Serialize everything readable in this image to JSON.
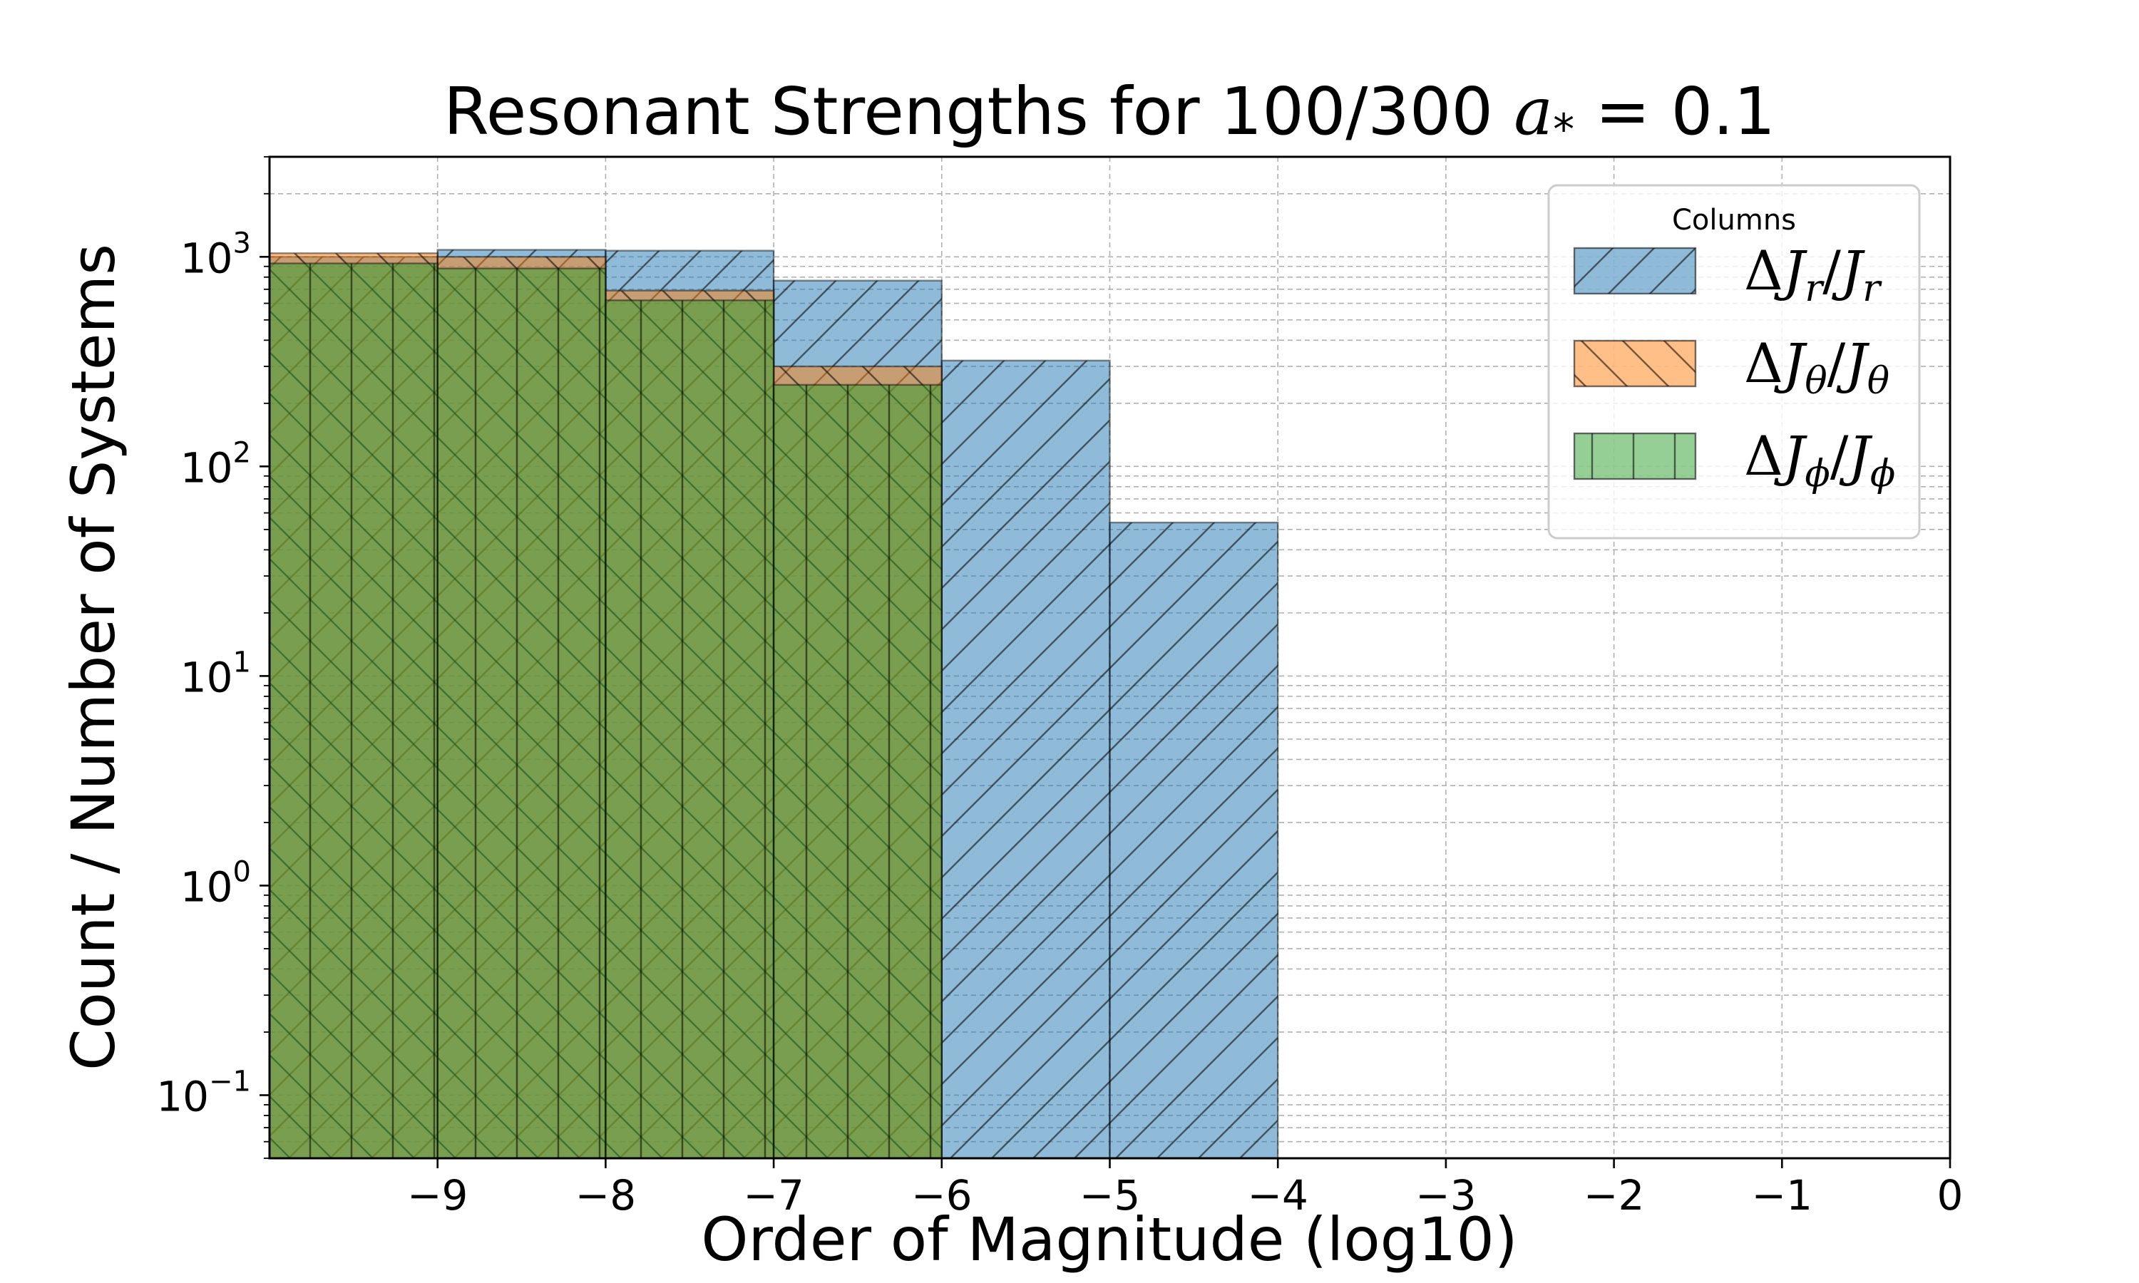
{
  "chart_data": {
    "type": "bar",
    "title": "Resonant Strengths for 100/300 a* = 0.1",
    "title_parts": {
      "prefix": "Resonant Strengths for 100/300 ",
      "var": "a",
      "sub": "*",
      "suffix": " = 0.1"
    },
    "xlabel": "Order of Magnitude (log10)",
    "ylabel": "Count / Number of Systems",
    "y_scale": "log",
    "xlim": [
      -10,
      0
    ],
    "ylim": [
      0.05,
      3000
    ],
    "x_ticks": [
      {
        "value": -9,
        "label": "−9"
      },
      {
        "value": -8,
        "label": "−8"
      },
      {
        "value": -7,
        "label": "−7"
      },
      {
        "value": -6,
        "label": "−6"
      },
      {
        "value": -5,
        "label": "−5"
      },
      {
        "value": -4,
        "label": "−4"
      },
      {
        "value": -3,
        "label": "−3"
      },
      {
        "value": -2,
        "label": "−2"
      },
      {
        "value": -1,
        "label": "−1"
      },
      {
        "value": 0,
        "label": "0"
      }
    ],
    "y_ticks": [
      {
        "value": 0.1,
        "base": "10",
        "exp": "−1"
      },
      {
        "value": 1,
        "base": "10",
        "exp": "0"
      },
      {
        "value": 10,
        "base": "10",
        "exp": "1"
      },
      {
        "value": 100,
        "base": "10",
        "exp": "2"
      },
      {
        "value": 1000,
        "base": "10",
        "exp": "3"
      }
    ],
    "grid": true,
    "legend": {
      "title": "Columns",
      "placement": "top-right"
    },
    "series": [
      {
        "name": "ΔJr/Jr",
        "label_parts": {
          "delta": "Δ",
          "j": "J",
          "sub": "r"
        },
        "color": "#1f77b4",
        "hatch": "diagonal-up",
        "bins": [
          {
            "x0": -10,
            "x1": -9,
            "value": 1000
          },
          {
            "x0": -9,
            "x1": -8,
            "value": 1080
          },
          {
            "x0": -8,
            "x1": -7,
            "value": 1070
          },
          {
            "x0": -7,
            "x1": -6,
            "value": 770
          },
          {
            "x0": -6,
            "x1": -5,
            "value": 320
          },
          {
            "x0": -5,
            "x1": -4,
            "value": 54
          }
        ]
      },
      {
        "name": "ΔJθ/Jθ",
        "label_parts": {
          "delta": "Δ",
          "j": "J",
          "sub": "θ"
        },
        "color": "#ff7f0e",
        "hatch": "diagonal-down",
        "bins": [
          {
            "x0": -10,
            "x1": -9,
            "value": 1040
          },
          {
            "x0": -9,
            "x1": -8,
            "value": 1000
          },
          {
            "x0": -8,
            "x1": -7,
            "value": 690
          },
          {
            "x0": -7,
            "x1": -6,
            "value": 300
          }
        ]
      },
      {
        "name": "ΔJϕ/Jϕ",
        "label_parts": {
          "delta": "Δ",
          "j": "J",
          "sub": "ϕ"
        },
        "color": "#2ca02c",
        "hatch": "vertical",
        "bins": [
          {
            "x0": -10,
            "x1": -9,
            "value": 930
          },
          {
            "x0": -9,
            "x1": -8,
            "value": 880
          },
          {
            "x0": -8,
            "x1": -7,
            "value": 620
          },
          {
            "x0": -7,
            "x1": -6,
            "value": 245
          }
        ]
      }
    ]
  }
}
